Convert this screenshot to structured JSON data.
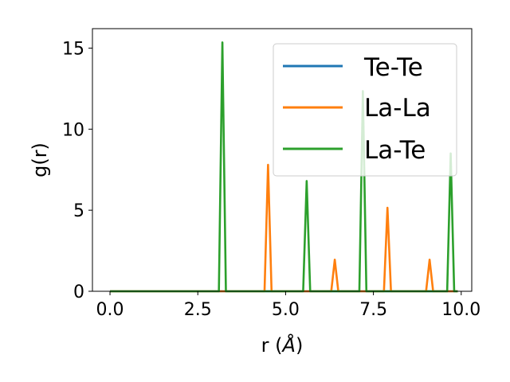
{
  "chart_data": {
    "type": "line",
    "xlabel": "r (",
    "xlabel_unit": "Å",
    "xlabel_close": ")",
    "ylabel": "g(r)",
    "xlim": [
      -0.5,
      10.3
    ],
    "ylim": [
      0,
      16.2
    ],
    "xticks": [
      0.0,
      2.5,
      5.0,
      7.5,
      10.0
    ],
    "xtick_labels": [
      "0.0",
      "2.5",
      "5.0",
      "7.5",
      "10.0"
    ],
    "yticks": [
      0,
      5,
      10,
      15
    ],
    "ytick_labels": [
      "0",
      "5",
      "10",
      "15"
    ],
    "grid": false,
    "legend_position": "top-right",
    "colors": {
      "te_te": "#1f77b4",
      "la_la": "#ff7f0e",
      "la_te": "#2ca02c"
    },
    "series": [
      {
        "name": "Te-Te",
        "color": "#1f77b4",
        "points": [
          [
            0.0,
            0
          ],
          [
            9.9,
            0
          ]
        ]
      },
      {
        "name": "La-La",
        "color": "#ff7f0e",
        "points": [
          [
            0.0,
            0
          ],
          [
            4.4,
            0
          ],
          [
            4.5,
            7.8
          ],
          [
            4.6,
            0
          ],
          [
            6.3,
            0
          ],
          [
            6.4,
            1.95
          ],
          [
            6.5,
            0
          ],
          [
            7.8,
            0
          ],
          [
            7.9,
            5.15
          ],
          [
            8.0,
            0
          ],
          [
            9.0,
            0
          ],
          [
            9.1,
            1.95
          ],
          [
            9.2,
            0
          ],
          [
            9.9,
            0
          ]
        ]
      },
      {
        "name": "La-Te",
        "color": "#2ca02c",
        "points": [
          [
            0.0,
            0
          ],
          [
            3.1,
            0
          ],
          [
            3.2,
            15.35
          ],
          [
            3.3,
            0
          ],
          [
            5.5,
            0
          ],
          [
            5.6,
            6.8
          ],
          [
            5.7,
            0
          ],
          [
            7.1,
            0
          ],
          [
            7.2,
            12.35
          ],
          [
            7.3,
            0
          ],
          [
            9.6,
            0
          ],
          [
            9.7,
            8.5
          ],
          [
            9.8,
            0
          ],
          [
            9.9,
            0
          ]
        ]
      }
    ]
  }
}
